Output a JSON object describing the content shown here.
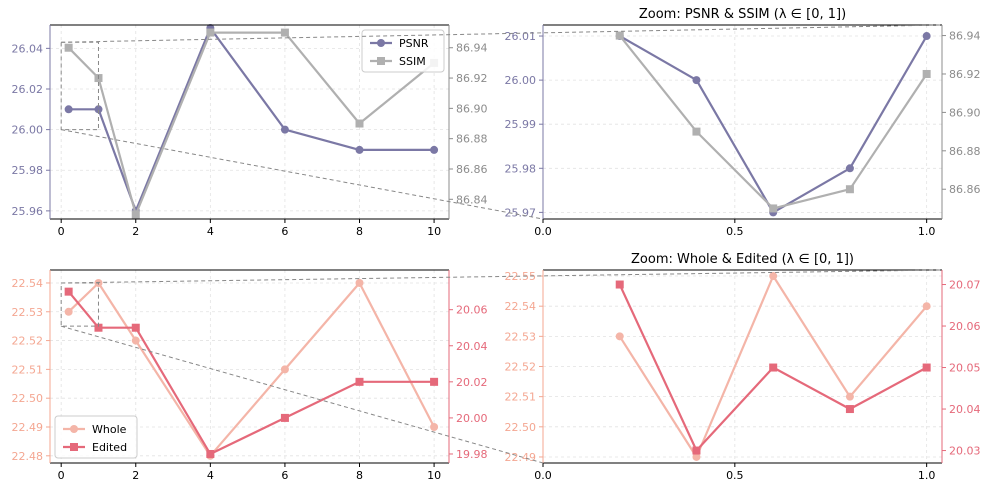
{
  "chart_data": [
    {
      "type": "line",
      "title": "",
      "x": [
        0.2,
        1,
        2,
        4,
        6,
        8,
        10
      ],
      "xlim": [
        -0.3,
        10.4
      ],
      "xticks": [
        "0",
        "2",
        "4",
        "6",
        "8",
        "10"
      ],
      "xtick_values": [
        0,
        2,
        4,
        6,
        8,
        10
      ],
      "left_axis": {
        "ylim": [
          25.956,
          26.0515
        ],
        "ticks": [
          "25.96",
          "25.98",
          "26.00",
          "26.02",
          "26.04"
        ],
        "tick_values": [
          25.96,
          25.98,
          26.0,
          26.02,
          26.04
        ],
        "color": "#7b78a5"
      },
      "right_axis": {
        "ylim": [
          86.827,
          86.955
        ],
        "ticks": [
          "86.84",
          "86.86",
          "86.88",
          "86.90",
          "86.92",
          "86.94"
        ],
        "tick_values": [
          86.84,
          86.86,
          86.88,
          86.9,
          86.92,
          86.94
        ],
        "color": "#8c8c8c"
      },
      "series": [
        {
          "name": "PSNR",
          "axis": "left",
          "marker": "circle",
          "color": "#7b78a5",
          "values": [
            26.01,
            26.01,
            25.96,
            26.05,
            26.0,
            25.99,
            25.99
          ]
        },
        {
          "name": "SSIM",
          "axis": "right",
          "marker": "square",
          "color": "#b0b0b0",
          "values": [
            86.94,
            86.92,
            86.83,
            86.95,
            86.95,
            86.89,
            86.93
          ]
        }
      ],
      "legend": "top-right",
      "inset_box": {
        "x": [
          0,
          1
        ],
        "y_left": [
          26.0,
          26.043
        ]
      }
    },
    {
      "type": "line",
      "title": "Zoom: PSNR & SSIM (λ ∈ [0, 1])",
      "x": [
        0.2,
        0.4,
        0.6,
        0.8,
        1.0
      ],
      "xlim": [
        0.0,
        1.04
      ],
      "xticks": [
        "0.0",
        "0.5",
        "1.0"
      ],
      "xtick_values": [
        0.0,
        0.5,
        1.0
      ],
      "left_axis": {
        "ylim": [
          25.9685,
          26.0125
        ],
        "ticks": [
          "25.97",
          "25.98",
          "25.99",
          "26.00",
          "26.01"
        ],
        "tick_values": [
          25.97,
          25.98,
          25.99,
          26.0,
          26.01
        ],
        "color": "#7b78a5"
      },
      "right_axis": {
        "ylim": [
          86.8445,
          86.9455
        ],
        "ticks": [
          "86.86",
          "86.88",
          "86.90",
          "86.92",
          "86.94"
        ],
        "tick_values": [
          86.86,
          86.88,
          86.9,
          86.92,
          86.94
        ],
        "color": "#8c8c8c"
      },
      "series": [
        {
          "name": "PSNR",
          "axis": "left",
          "marker": "circle",
          "color": "#7b78a5",
          "values": [
            26.01,
            26.0,
            25.97,
            25.98,
            26.01
          ]
        },
        {
          "name": "SSIM",
          "axis": "right",
          "marker": "square",
          "color": "#b0b0b0",
          "values": [
            86.94,
            86.89,
            86.85,
            86.86,
            86.92
          ]
        }
      ]
    },
    {
      "type": "line",
      "title": "",
      "x": [
        0.2,
        1,
        2,
        4,
        6,
        8,
        10
      ],
      "xlim": [
        -0.3,
        10.4
      ],
      "xticks": [
        "0",
        "2",
        "4",
        "6",
        "8",
        "10"
      ],
      "xtick_values": [
        0,
        2,
        4,
        6,
        8,
        10
      ],
      "left_axis": {
        "ylim": [
          22.4775,
          22.5445
        ],
        "ticks": [
          "22.48",
          "22.49",
          "22.50",
          "22.51",
          "22.52",
          "22.53",
          "22.54"
        ],
        "tick_values": [
          22.48,
          22.49,
          22.5,
          22.51,
          22.52,
          22.53,
          22.54
        ],
        "color": "#f4a792"
      },
      "right_axis": {
        "ylim": [
          19.975,
          20.082
        ],
        "ticks": [
          "19.98",
          "20.00",
          "20.02",
          "20.04",
          "20.06"
        ],
        "tick_values": [
          19.98,
          20.0,
          20.02,
          20.04,
          20.06
        ],
        "color": "#e5697a"
      },
      "series": [
        {
          "name": "Whole",
          "axis": "left",
          "marker": "circle",
          "color": "#f4b5a8",
          "values": [
            22.53,
            22.54,
            22.52,
            22.48,
            22.51,
            22.54,
            22.49
          ]
        },
        {
          "name": "Edited",
          "axis": "right",
          "marker": "square",
          "color": "#e5697a",
          "values": [
            20.07,
            20.05,
            20.05,
            19.98,
            20.0,
            20.02,
            20.02
          ]
        }
      ],
      "legend": "bottom-left",
      "inset_box": {
        "x": [
          0,
          1
        ],
        "y_left": [
          22.525,
          22.54
        ]
      }
    },
    {
      "type": "line",
      "title": "Zoom: Whole & Edited (λ ∈ [0, 1])",
      "x": [
        0.2,
        0.4,
        0.6,
        0.8,
        1.0
      ],
      "xlim": [
        0.0,
        1.04
      ],
      "xticks": [
        "0.0",
        "0.5",
        "1.0"
      ],
      "xtick_values": [
        0.0,
        0.5,
        1.0
      ],
      "left_axis": {
        "ylim": [
          22.488,
          22.552
        ],
        "ticks": [
          "22.49",
          "22.50",
          "22.51",
          "22.52",
          "22.53",
          "22.54",
          "22.55"
        ],
        "tick_values": [
          22.49,
          22.5,
          22.51,
          22.52,
          22.53,
          22.54,
          22.55
        ],
        "color": "#f4a792"
      },
      "right_axis": {
        "ylim": [
          20.027,
          20.0735
        ],
        "ticks": [
          "20.03",
          "20.04",
          "20.05",
          "20.06",
          "20.07"
        ],
        "tick_values": [
          20.03,
          20.04,
          20.05,
          20.06,
          20.07
        ],
        "color": "#e5697a"
      },
      "series": [
        {
          "name": "Whole",
          "axis": "left",
          "marker": "circle",
          "color": "#f4b5a8",
          "values": [
            22.53,
            22.49,
            22.55,
            22.51,
            22.54
          ]
        },
        {
          "name": "Edited",
          "axis": "right",
          "marker": "square",
          "color": "#e5697a",
          "values": [
            20.07,
            20.03,
            20.05,
            20.04,
            20.05
          ]
        }
      ]
    }
  ]
}
